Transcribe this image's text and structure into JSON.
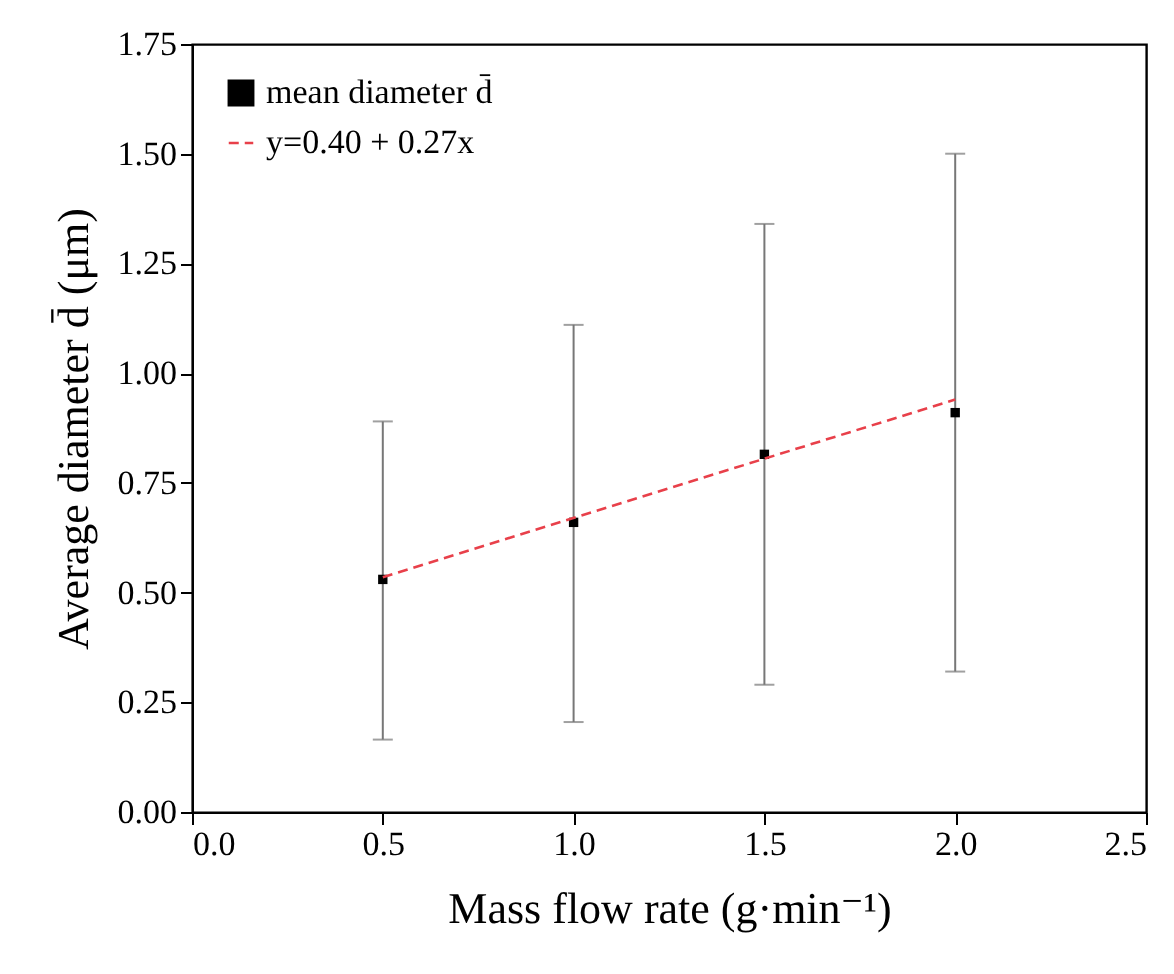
{
  "chart_data": {
    "type": "scatter",
    "xlabel": "Mass flow rate (g·min⁻¹)",
    "ylabel": "Average diameter d̄ (μm)",
    "xlim": [
      0,
      2.5
    ],
    "xticks": [
      {
        "value": 0,
        "label": "0.0"
      },
      0.5,
      {
        "value": 1,
        "label": "1.0"
      },
      1.5,
      {
        "value": 2,
        "label": "2.0"
      },
      2.5
    ],
    "ylim": [
      0,
      1.75
    ],
    "yticks": [
      {
        "value": 0,
        "label": "0.00"
      },
      0.25,
      {
        "value": 0.5,
        "label": "0.50"
      },
      0.75,
      {
        "value": 1,
        "label": "1.00"
      },
      1.25,
      {
        "value": 1.5,
        "label": "1.50"
      },
      1.75
    ],
    "legend": "top left",
    "grid": false,
    "series": [
      {
        "name": "mean diameter d̄",
        "marker": "square",
        "color": "#000000",
        "x": [
          0.5,
          1.0,
          1.5,
          2.0
        ],
        "values": [
          0.53,
          0.66,
          0.815,
          0.91
        ],
        "errors": [
          [
            0.165,
            0.89
          ],
          [
            0.205,
            1.11
          ],
          [
            0.29,
            1.34
          ],
          [
            0.32,
            1.5
          ]
        ]
      },
      {
        "name": "y=0.40 + 0.27x",
        "type": "line",
        "line_style": "dashed",
        "color": "#e8404a",
        "x": [
          0.5,
          2.0
        ],
        "values": [
          0.535,
          0.94
        ]
      }
    ]
  }
}
